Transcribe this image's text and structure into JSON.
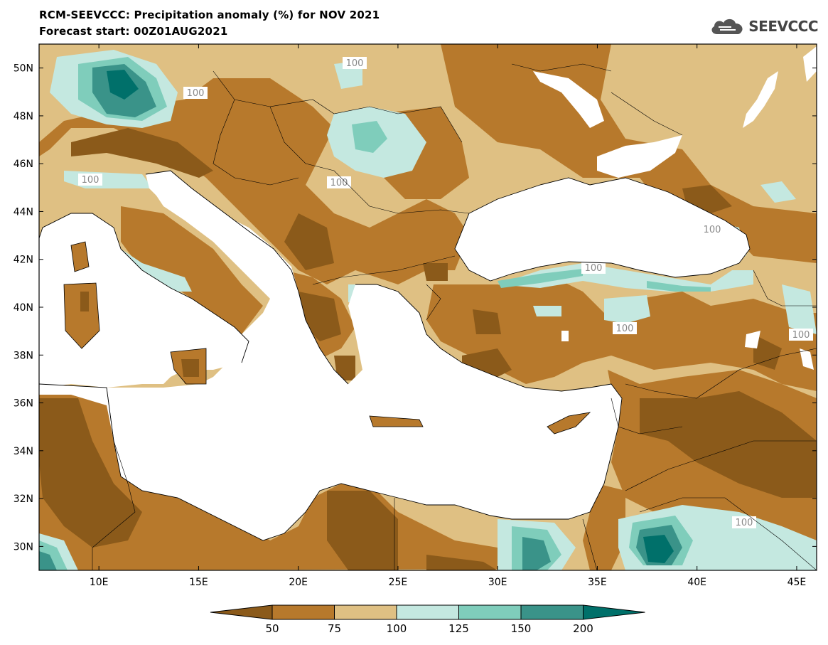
{
  "header": {
    "title": "RCM-SEEVCCC: Precipitation anomaly (%) for NOV 2021",
    "subtitle": "Forecast start: 00Z01AUG2021"
  },
  "logo": {
    "text": "SEEVCCC",
    "icon": "cloud-icon"
  },
  "map": {
    "lon_range": [
      7,
      46
    ],
    "lat_range": [
      29,
      51
    ],
    "lon_ticks": [
      "10E",
      "15E",
      "20E",
      "25E",
      "30E",
      "35E",
      "40E",
      "45E"
    ],
    "lat_ticks": [
      "50N",
      "48N",
      "46N",
      "44N",
      "42N",
      "40N",
      "38N",
      "36N",
      "34N",
      "32N",
      "30N"
    ],
    "contour_labels": [
      "100",
      "100",
      "100",
      "100",
      "100",
      "100",
      "100",
      "100",
      "100"
    ]
  },
  "legend": {
    "ticks": [
      "50",
      "75",
      "100",
      "125",
      "150",
      "200"
    ],
    "colors": [
      "#8b5a1a",
      "#b7792c",
      "#dfc083",
      "#c4e8e0",
      "#7fcdbb",
      "#3a9389",
      "#00706a"
    ]
  }
}
